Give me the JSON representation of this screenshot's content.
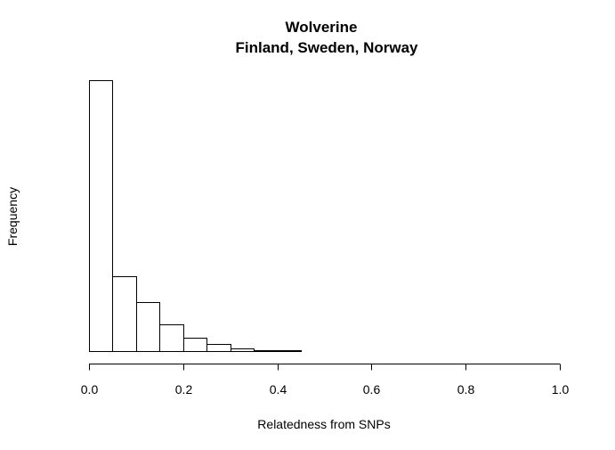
{
  "chart_data": {
    "type": "bar",
    "histogram": true,
    "title": [
      "Wolverine",
      "Finland, Sweden, Norway"
    ],
    "xlabel": "Relatedness from SNPs",
    "ylabel": "Frequency",
    "xlim": [
      0.0,
      1.0
    ],
    "x_ticks": [
      0.0,
      0.2,
      0.4,
      0.6,
      0.8,
      1.0
    ],
    "x_tick_labels": [
      "0.0",
      "0.2",
      "0.4",
      "0.6",
      "0.8",
      "1.0"
    ],
    "y_ticks_shown": false,
    "ylim_relative": [
      0,
      1.0
    ],
    "bin_width": 0.05,
    "bins": [
      {
        "start": 0.0,
        "end": 0.05,
        "value": 1.0
      },
      {
        "start": 0.05,
        "end": 0.1,
        "value": 0.276
      },
      {
        "start": 0.1,
        "end": 0.15,
        "value": 0.18
      },
      {
        "start": 0.15,
        "end": 0.2,
        "value": 0.099
      },
      {
        "start": 0.2,
        "end": 0.25,
        "value": 0.049
      },
      {
        "start": 0.25,
        "end": 0.3,
        "value": 0.026
      },
      {
        "start": 0.3,
        "end": 0.35,
        "value": 0.01
      },
      {
        "start": 0.35,
        "end": 0.4,
        "value": 0.004
      },
      {
        "start": 0.4,
        "end": 0.45,
        "value": 0.003
      },
      {
        "start": 0.45,
        "end": 0.5,
        "value": 0.001
      },
      {
        "start": 0.5,
        "end": 0.55,
        "value": 0.0
      },
      {
        "start": 0.55,
        "end": 0.6,
        "value": 0.0
      },
      {
        "start": 0.6,
        "end": 0.65,
        "value": 0.0
      },
      {
        "start": 0.65,
        "end": 0.7,
        "value": 0.0
      },
      {
        "start": 0.7,
        "end": 0.75,
        "value": 0.0
      },
      {
        "start": 0.75,
        "end": 0.8,
        "value": 0.0
      },
      {
        "start": 0.8,
        "end": 0.85,
        "value": 0.0
      },
      {
        "start": 0.85,
        "end": 0.9,
        "value": 0.0
      },
      {
        "start": 0.9,
        "end": 0.95,
        "value": 0.0
      },
      {
        "start": 0.95,
        "end": 1.0,
        "value": 0.0
      }
    ],
    "bar_fill": "#ffffff",
    "bar_stroke": "#000000",
    "grid": false,
    "legend": "none"
  }
}
